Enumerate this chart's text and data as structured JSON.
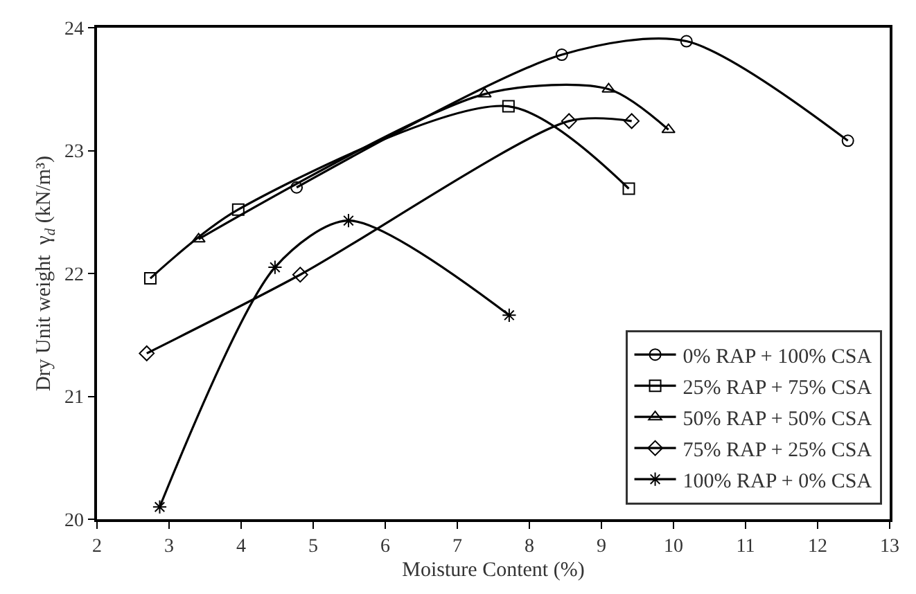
{
  "chart_data": {
    "type": "line",
    "xlabel": "Moisture Content (%)",
    "ylabel": "Dry Unit weight  γ$_{d}$ (kN/m³)",
    "xlim": [
      2,
      13
    ],
    "xticks": [
      2,
      3,
      4,
      5,
      6,
      7,
      8,
      9,
      10,
      11,
      12,
      13
    ],
    "ylim": [
      20,
      24
    ],
    "yticks": [
      20,
      21,
      22,
      23,
      24
    ],
    "legend": "bottom right",
    "line_style": "solid",
    "series": [
      {
        "name": "0% RAP + 100% CSA",
        "color": "#000000",
        "marker": "circle",
        "x": [
          4.77,
          8.45,
          10.18,
          12.42
        ],
        "values": [
          22.7,
          23.78,
          23.89,
          23.08
        ]
      },
      {
        "name": "25% RAP + 75% CSA",
        "color": "#000000",
        "marker": "square",
        "x": [
          2.74,
          3.96,
          7.71,
          9.38
        ],
        "values": [
          21.96,
          22.52,
          23.36,
          22.69
        ]
      },
      {
        "name": "50% RAP + 50% CSA",
        "color": "#000000",
        "marker": "triangle",
        "x": [
          3.41,
          7.38,
          9.1,
          9.93
        ],
        "values": [
          22.28,
          23.46,
          23.5,
          23.17
        ]
      },
      {
        "name": "75% RAP + 25% CSA",
        "color": "#000000",
        "marker": "diamond",
        "x": [
          2.69,
          4.82,
          8.55,
          9.42
        ],
        "values": [
          21.35,
          21.99,
          23.24,
          23.24
        ]
      },
      {
        "name": "100% RAP + 0% CSA",
        "color": "#000000",
        "marker": "cross",
        "x": [
          2.87,
          4.47,
          5.49,
          7.72
        ],
        "values": [
          20.1,
          22.05,
          22.43,
          21.66
        ]
      }
    ]
  }
}
